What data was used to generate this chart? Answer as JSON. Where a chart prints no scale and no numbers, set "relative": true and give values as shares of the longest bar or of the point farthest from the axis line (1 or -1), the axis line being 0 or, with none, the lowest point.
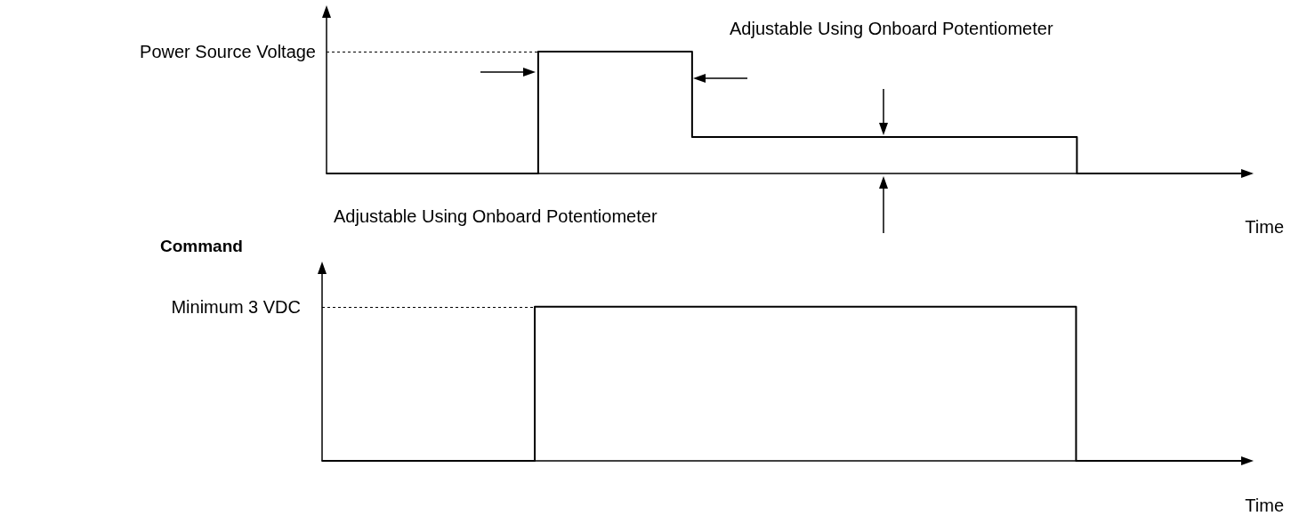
{
  "chart_data": [
    {
      "type": "step",
      "relative": true,
      "categories": [
        null,
        null,
        null,
        null,
        null,
        null,
        null,
        null,
        null,
        null,
        null,
        null,
        null,
        null,
        null,
        null,
        null,
        null,
        null,
        null,
        null,
        null,
        null,
        null,
        null,
        null,
        null,
        null,
        null,
        null,
        null,
        null,
        null,
        null,
        null,
        null,
        null,
        null,
        null,
        null,
        null,
        null,
        null,
        null,
        null,
        null,
        null,
        null,
        null
      ],
      "values": [
        0,
        0,
        0,
        0,
        0,
        0,
        0,
        0,
        0,
        0,
        0,
        1,
        1,
        1,
        1,
        1,
        1,
        1,
        1,
        0.3,
        0.3,
        0.3,
        0.3,
        0.3,
        0.3,
        0.3,
        0.3,
        0.3,
        0.3,
        0.3,
        0.3,
        0.3,
        0.3,
        0.3,
        0.3,
        0.3,
        0.3,
        0.3,
        0.3,
        0,
        0,
        0,
        0,
        0,
        0,
        0,
        0,
        0,
        0
      ],
      "color": "#000000",
      "xlabel": "Time",
      "annotations": [
        "Power Source Voltage",
        "Adjustable Using Onboard Potentiometer",
        "Adjustable Using Onboard Potentiometer"
      ],
      "ref_lines": [
        {
          "axis": "y",
          "value": 1,
          "line_style": "dotted"
        }
      ],
      "marker": "none",
      "line_style": "solid"
    },
    {
      "type": "step",
      "relative": true,
      "title": "Command",
      "categories": [
        null,
        null,
        null,
        null,
        null,
        null,
        null,
        null,
        null,
        null,
        null,
        null,
        null,
        null,
        null,
        null,
        null,
        null,
        null,
        null,
        null,
        null,
        null,
        null,
        null,
        null,
        null,
        null,
        null,
        null,
        null,
        null,
        null,
        null,
        null,
        null,
        null,
        null,
        null,
        null,
        null,
        null,
        null,
        null,
        null,
        null,
        null,
        null,
        null
      ],
      "values": [
        0,
        0,
        0,
        0,
        0,
        0,
        0,
        0,
        0,
        0,
        0,
        1,
        1,
        1,
        1,
        1,
        1,
        1,
        1,
        1,
        1,
        1,
        1,
        1,
        1,
        1,
        1,
        1,
        1,
        1,
        1,
        1,
        1,
        1,
        1,
        1,
        1,
        1,
        1,
        0,
        0,
        0,
        0,
        0,
        0,
        0,
        0,
        0,
        0
      ],
      "color": "#000000",
      "xlabel": "Time",
      "annotations": [
        "Minimum 3 VDC"
      ],
      "ref_lines": [
        {
          "axis": "y",
          "value": 1,
          "line_style": "dotted"
        }
      ],
      "marker": "none",
      "line_style": "solid"
    }
  ]
}
